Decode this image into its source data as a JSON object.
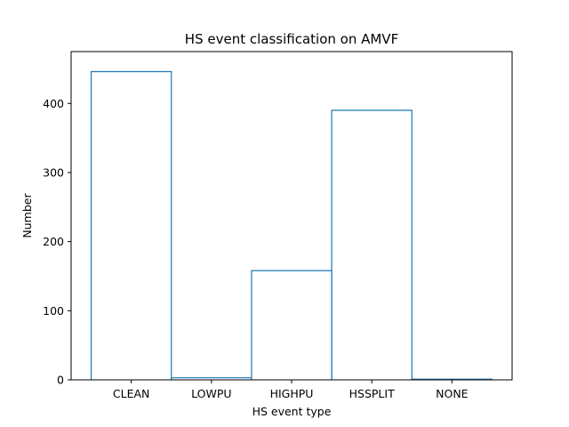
{
  "chart_data": {
    "type": "bar",
    "style": "step-histogram",
    "title": "HS event classification on AMVF",
    "xlabel": "HS event type",
    "ylabel": "Number",
    "categories": [
      "CLEAN",
      "LOWPU",
      "HIGHPU",
      "HSSPLIT",
      "NONE"
    ],
    "values": [
      446,
      3,
      158,
      390,
      1
    ],
    "ylim": [
      0,
      475
    ],
    "yticks": [
      0,
      100,
      200,
      300,
      400
    ],
    "grid": false,
    "legend": "none",
    "colors": {
      "series": "#1f77b4",
      "axes": "#000000",
      "background": "#ffffff"
    }
  }
}
